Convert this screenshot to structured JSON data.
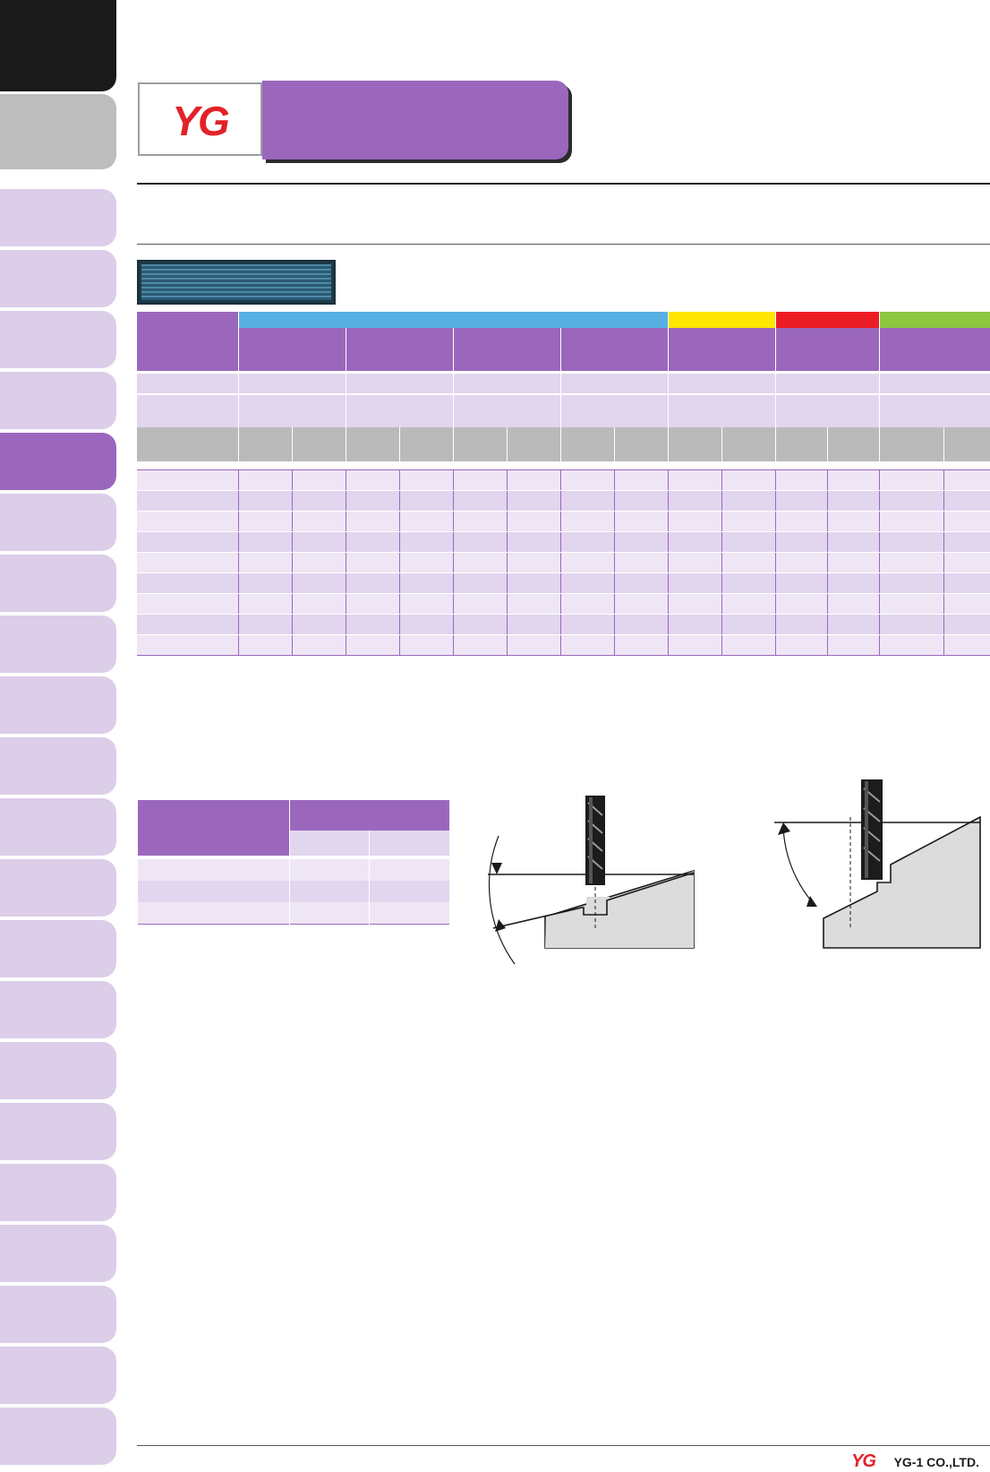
{
  "header": {
    "logo_text": "YG",
    "logo_color": "#e32228",
    "banner_color": "#9b67bd"
  },
  "sidebar": {
    "tab_colors": {
      "top": "#1a1a1a",
      "second": "#bdbdbd",
      "active": "#9b67bd",
      "inactive": "#dccde9"
    },
    "tab_count": 23,
    "active_index": 4
  },
  "main_table": {
    "group_colors": [
      "#56b0e3",
      "#ffe600",
      "#ec1c24",
      "#8dc63f"
    ],
    "group_spans": [
      4,
      1,
      1,
      1
    ],
    "body_rows": 9
  },
  "small_table": {
    "body_rows": 3
  },
  "footer": {
    "company": "YG-1 CO.,LTD.",
    "logo_text": "YG"
  },
  "icons": [
    "end-mill-icon",
    "arrow-icon"
  ]
}
